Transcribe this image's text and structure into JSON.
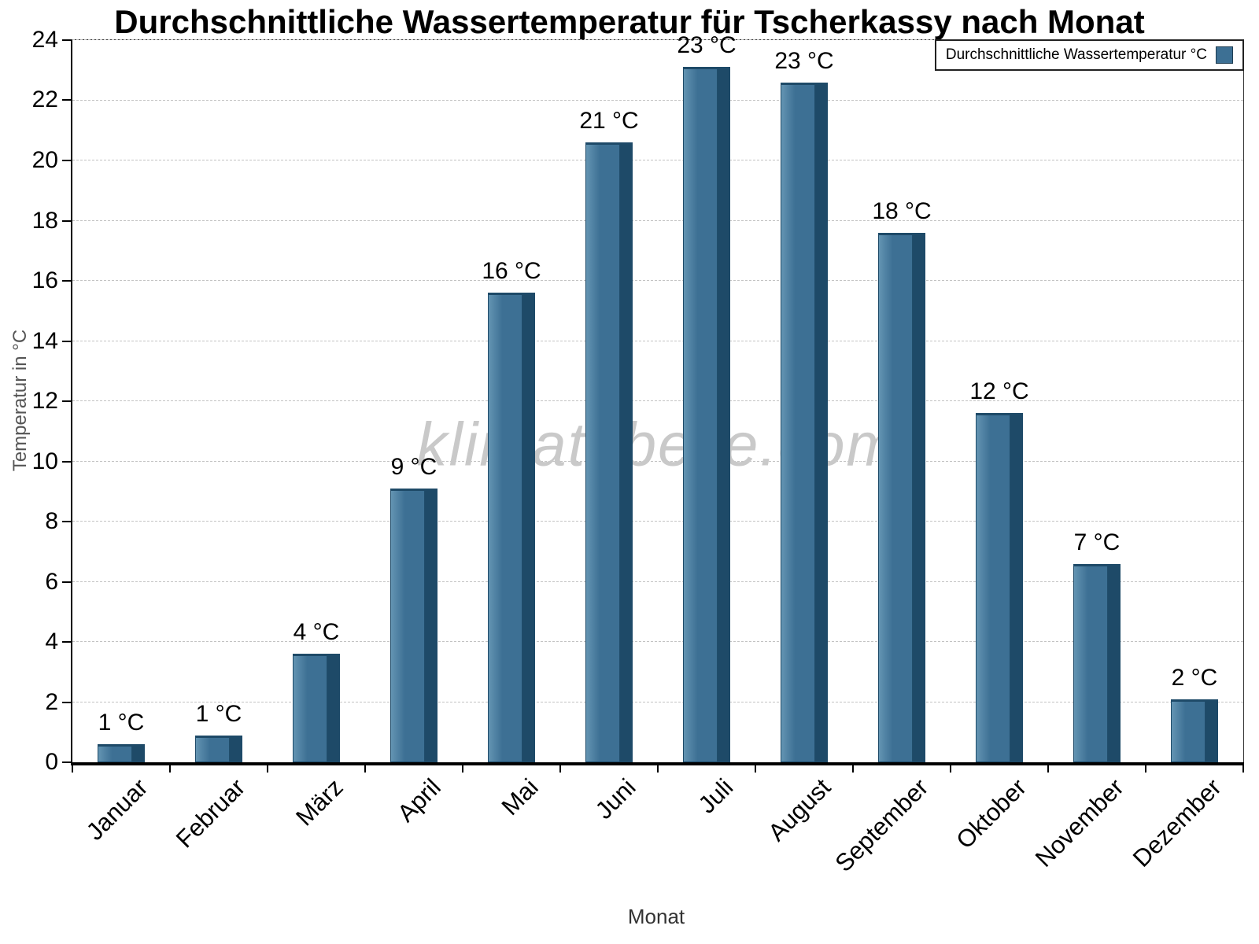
{
  "watermark": "klimatabelle.com",
  "chart_data": {
    "type": "bar",
    "title": "Durchschnittliche Wassertemperatur für Tscherkassy nach Monat",
    "xlabel": "Monat",
    "ylabel": "Temperatur in °C",
    "categories": [
      "Januar",
      "Februar",
      "März",
      "April",
      "Mai",
      "Juni",
      "Juli",
      "August",
      "September",
      "Oktober",
      "November",
      "Dezember"
    ],
    "values": [
      0.6,
      0.9,
      3.6,
      9.1,
      15.6,
      20.6,
      23.1,
      22.6,
      17.6,
      11.6,
      6.6,
      2.1
    ],
    "bar_labels": [
      "1 °C",
      "1 °C",
      "4 °C",
      "9 °C",
      "16 °C",
      "21 °C",
      "23 °C",
      "23 °C",
      "18 °C",
      "12 °C",
      "7 °C",
      "2 °C"
    ],
    "ylim": [
      0,
      24
    ],
    "ytick_step": 2,
    "grid": "horizontal-dashed",
    "grid_color": "#c3c3c3",
    "legend": {
      "label": "Durchschnittliche Wassertemperatur °C",
      "position": "top-right"
    },
    "bar_color": "#3d7094",
    "bar_color_dark": "#1e4a68",
    "bar_color_light": "#6394b2"
  }
}
